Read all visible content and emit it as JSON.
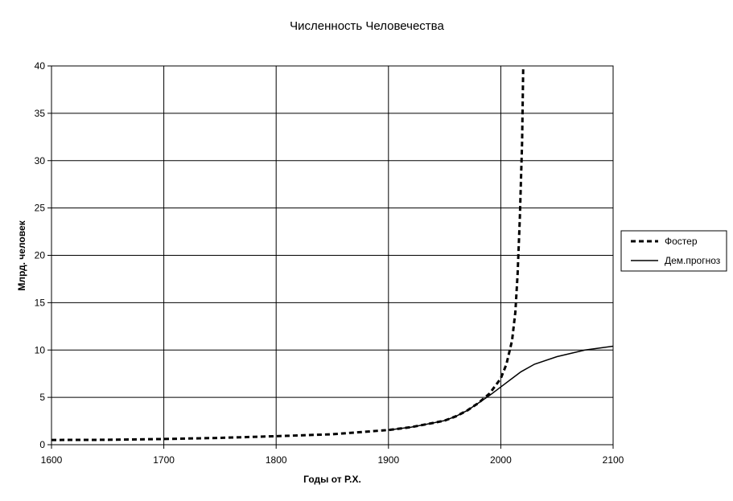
{
  "chart_data": {
    "type": "line",
    "title": "Численность Человечества",
    "xlabel": "Годы от Р.Х.",
    "ylabel": "Млрд. человек",
    "xlim": [
      1600,
      2100
    ],
    "ylim": [
      0,
      40
    ],
    "x_ticks": [
      1600,
      1700,
      1800,
      1900,
      2000,
      2100
    ],
    "y_ticks": [
      0,
      5,
      10,
      15,
      20,
      25,
      30,
      35,
      40
    ],
    "x_tick_labels": [
      "1600",
      "1700",
      "1800",
      "1900",
      "2000",
      "2100"
    ],
    "y_tick_labels": [
      "0",
      "5",
      "10",
      "15",
      "20",
      "25",
      "30",
      "35",
      "40"
    ],
    "grid": true,
    "legend_position": "right",
    "series": [
      {
        "name": "Фостер",
        "style": "dashed",
        "color": "#000000",
        "points": [
          [
            1600,
            0.5
          ],
          [
            1650,
            0.52
          ],
          [
            1700,
            0.6
          ],
          [
            1750,
            0.72
          ],
          [
            1800,
            0.9
          ],
          [
            1850,
            1.1
          ],
          [
            1900,
            1.55
          ],
          [
            1920,
            1.85
          ],
          [
            1940,
            2.3
          ],
          [
            1950,
            2.55
          ],
          [
            1960,
            3.0
          ],
          [
            1970,
            3.6
          ],
          [
            1980,
            4.4
          ],
          [
            1990,
            5.4
          ],
          [
            2000,
            7.0
          ],
          [
            2005,
            8.5
          ],
          [
            2010,
            11.0
          ],
          [
            2013,
            14.0
          ],
          [
            2015,
            18.0
          ],
          [
            2017,
            24.0
          ],
          [
            2019,
            32.0
          ],
          [
            2020,
            40.0
          ]
        ]
      },
      {
        "name": "Дем.прогноз",
        "style": "solid",
        "color": "#000000",
        "points": [
          [
            1900,
            1.55
          ],
          [
            1920,
            1.85
          ],
          [
            1940,
            2.3
          ],
          [
            1950,
            2.55
          ],
          [
            1960,
            3.0
          ],
          [
            1970,
            3.6
          ],
          [
            1980,
            4.4
          ],
          [
            1990,
            5.2
          ],
          [
            2000,
            6.1
          ],
          [
            2010,
            7.0
          ],
          [
            2018,
            7.7
          ],
          [
            2030,
            8.5
          ],
          [
            2050,
            9.3
          ],
          [
            2075,
            10.0
          ],
          [
            2100,
            10.4
          ]
        ]
      }
    ]
  }
}
